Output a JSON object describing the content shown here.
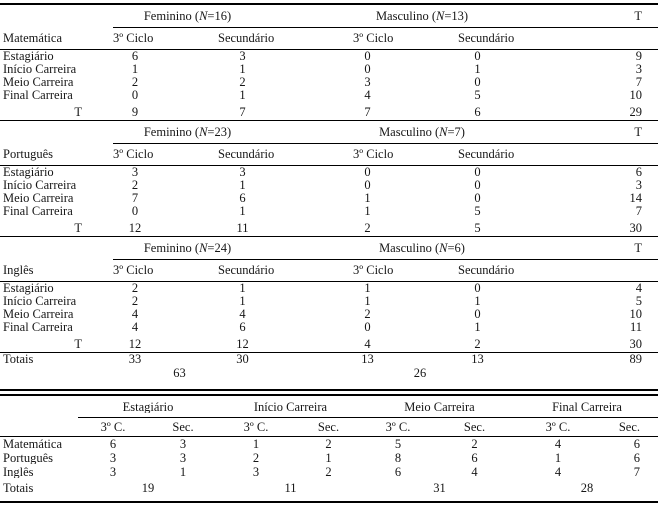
{
  "colors": {
    "background": "#ffffff",
    "text": "#161616",
    "rule": "#000000"
  },
  "table1": {
    "t_col_header": "T",
    "blocks": [
      {
        "subject": "Matemática",
        "groups": [
          {
            "pre": "Feminino (",
            "n": "N",
            "post": "=16)"
          },
          {
            "pre": "Masculino (",
            "n": "N",
            "post": "=13)"
          }
        ],
        "col_headers": [
          "3º Ciclo",
          "Secundário",
          "3º Ciclo",
          "Secundário"
        ],
        "rows": [
          {
            "label": "Estagiário",
            "v": [
              "6",
              "3",
              "0",
              "0",
              "9"
            ]
          },
          {
            "label": "Início Carreira",
            "v": [
              "1",
              "1",
              "0",
              "1",
              "3"
            ]
          },
          {
            "label": "Meio Carreira",
            "v": [
              "2",
              "2",
              "3",
              "0",
              "7"
            ]
          },
          {
            "label": "Final Carreira",
            "v": [
              "0",
              "1",
              "4",
              "5",
              "10"
            ]
          }
        ],
        "total": {
          "label": "T",
          "v": [
            "9",
            "7",
            "7",
            "6",
            "29"
          ]
        }
      },
      {
        "subject": "Português",
        "groups": [
          {
            "pre": "Feminino (",
            "n": "N",
            "post": "=23)"
          },
          {
            "pre": "Masculino (",
            "n": "N",
            "post": "=7)"
          }
        ],
        "col_headers": [
          "3º Ciclo",
          "Secundário",
          "3º Ciclo",
          "Secundário"
        ],
        "rows": [
          {
            "label": "Estagiário",
            "v": [
              "3",
              "3",
              "0",
              "0",
              "6"
            ]
          },
          {
            "label": "Início Carreira",
            "v": [
              "2",
              "1",
              "0",
              "0",
              "3"
            ]
          },
          {
            "label": "Meio Carreira",
            "v": [
              "7",
              "6",
              "1",
              "0",
              "14"
            ]
          },
          {
            "label": "Final Carreira",
            "v": [
              "0",
              "1",
              "1",
              "5",
              "7"
            ]
          }
        ],
        "total": {
          "label": "T",
          "v": [
            "12",
            "11",
            "2",
            "5",
            "30"
          ]
        }
      },
      {
        "subject": "Inglês",
        "groups": [
          {
            "pre": "Feminino (",
            "n": "N",
            "post": "=24)"
          },
          {
            "pre": "Masculino (",
            "n": "N",
            "post": "=6)"
          }
        ],
        "col_headers": [
          "3º Ciclo",
          "Secundário",
          "3º Ciclo",
          "Secundário"
        ],
        "rows": [
          {
            "label": "Estagiário",
            "v": [
              "2",
              "1",
              "1",
              "0",
              "4"
            ]
          },
          {
            "label": "Início Carreira",
            "v": [
              "2",
              "1",
              "1",
              "1",
              "5"
            ]
          },
          {
            "label": "Meio Carreira",
            "v": [
              "4",
              "4",
              "2",
              "0",
              "10"
            ]
          },
          {
            "label": "Final Carreira",
            "v": [
              "4",
              "6",
              "0",
              "1",
              "11"
            ]
          }
        ],
        "total": {
          "label": "T",
          "v": [
            "12",
            "12",
            "4",
            "2",
            "30"
          ]
        }
      }
    ],
    "totals": {
      "label": "Totais",
      "v": [
        "33",
        "30",
        "13",
        "13",
        "89"
      ],
      "group_sums": [
        "63",
        "26"
      ]
    }
  },
  "table2": {
    "group_headers": [
      "Estagiário",
      "Início Carreira",
      "Meio Carreira",
      "Final Carreira"
    ],
    "sub_headers": [
      "3º C.",
      "Sec.",
      "3º C.",
      "Sec.",
      "3º C.",
      "Sec.",
      "3º C.",
      "Sec."
    ],
    "rows": [
      {
        "label": "Matemática",
        "v": [
          "6",
          "3",
          "1",
          "2",
          "5",
          "2",
          "4",
          "6"
        ]
      },
      {
        "label": "Português",
        "v": [
          "3",
          "3",
          "2",
          "1",
          "8",
          "6",
          "1",
          "6"
        ]
      },
      {
        "label": "Inglês",
        "v": [
          "3",
          "1",
          "3",
          "2",
          "6",
          "4",
          "4",
          "7"
        ]
      }
    ],
    "totals": {
      "label": "Totais",
      "v": [
        "19",
        "11",
        "31",
        "28"
      ]
    }
  }
}
